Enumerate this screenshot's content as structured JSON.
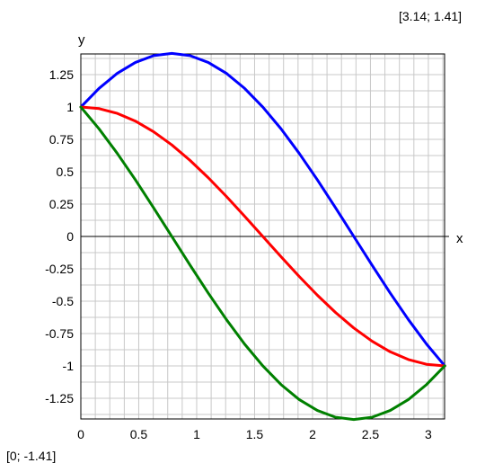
{
  "corner_labels": {
    "top_right": "[3.14; 1.41]",
    "bottom_left": "[0; -1.41]"
  },
  "chart_data": {
    "type": "line",
    "title": "",
    "xlabel": "x",
    "ylabel": "y",
    "xlim": [
      0,
      3.14
    ],
    "ylim": [
      -1.41,
      1.41
    ],
    "x_ticks": [
      0,
      0.5,
      1,
      1.5,
      2,
      2.5,
      3
    ],
    "x_tick_labels": [
      "0",
      "0.5",
      "1",
      "1.5",
      "2",
      "2.5",
      "3"
    ],
    "y_ticks": [
      1.25,
      1,
      0.75,
      0.5,
      0.25,
      0,
      -0.25,
      -0.5,
      -0.75,
      -1,
      -1.25
    ],
    "y_tick_labels": [
      "1.25",
      "1",
      "0.75",
      "0.5",
      "0.25",
      "0",
      "-0.25",
      "-0.5",
      "-0.75",
      "-1",
      "-1.25"
    ],
    "grid": true,
    "grid_x_step": 0.125,
    "grid_y_step": 0.125,
    "x": [
      0,
      0.1571,
      0.3142,
      0.4712,
      0.6283,
      0.7854,
      0.9425,
      1.0996,
      1.2566,
      1.4137,
      1.5708,
      1.7279,
      1.885,
      2.042,
      2.1991,
      2.3562,
      2.5133,
      2.6704,
      2.8274,
      2.9845,
      3.1416
    ],
    "series": [
      {
        "color": "#0000ff",
        "values": [
          1.0,
          1.1441,
          1.2601,
          1.3444,
          1.3968,
          1.4142,
          1.3968,
          1.3444,
          1.2601,
          1.1441,
          1.0,
          0.8316,
          0.642,
          0.437,
          0.2212,
          0.0,
          -0.2212,
          -0.437,
          -0.642,
          -0.8316,
          -1.0
        ]
      },
      {
        "color": "#ff0000",
        "values": [
          1.0,
          0.9877,
          0.9511,
          0.891,
          0.809,
          0.7071,
          0.5878,
          0.454,
          0.309,
          0.1564,
          0.0,
          -0.1564,
          -0.309,
          -0.454,
          -0.5878,
          -0.7071,
          -0.809,
          -0.891,
          -0.9511,
          -0.9877,
          -1.0
        ]
      },
      {
        "color": "#008000",
        "values": [
          1.0,
          0.8313,
          0.642,
          0.437,
          0.2212,
          0.0,
          -0.2212,
          -0.437,
          -0.642,
          -0.8316,
          -1.0,
          -1.1441,
          -1.2601,
          -1.3444,
          -1.3968,
          -1.4142,
          -1.3968,
          -1.3444,
          -1.2601,
          -1.1441,
          -1.0
        ]
      }
    ]
  }
}
